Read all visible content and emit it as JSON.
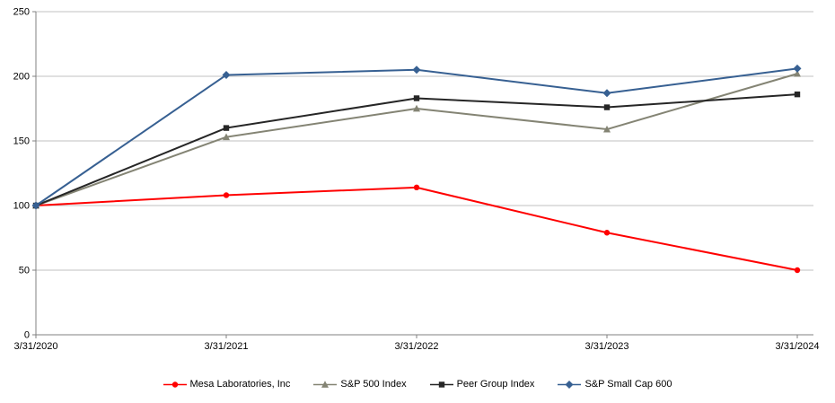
{
  "chart_data": {
    "type": "line",
    "x": [
      "3/31/2020",
      "3/31/2021",
      "3/31/2022",
      "3/31/2023",
      "3/31/2024"
    ],
    "series": [
      {
        "name": "Mesa Laboratories, Inc",
        "values": [
          100,
          108,
          114,
          79,
          50
        ],
        "color": "#ff0000",
        "marker": "circle"
      },
      {
        "name": "S&P 500 Index",
        "values": [
          100,
          153,
          175,
          159,
          202
        ],
        "color": "#848474",
        "marker": "triangle"
      },
      {
        "name": "Peer Group Index",
        "values": [
          100,
          160,
          183,
          176,
          186
        ],
        "color": "#262626",
        "marker": "square"
      },
      {
        "name": "S&P Small Cap 600",
        "values": [
          100,
          201,
          205,
          187,
          206
        ],
        "color": "#376092",
        "marker": "diamond"
      }
    ],
    "title": "",
    "xlabel": "",
    "ylabel": "",
    "ylim": [
      0,
      250
    ],
    "y_ticks": [
      0,
      50,
      100,
      150,
      200,
      250
    ],
    "grid": true,
    "legend_position": "bottom"
  },
  "colors": {
    "gridline": "#c0c0c0",
    "axis": "#808080",
    "text": "#000000",
    "background": "#ffffff"
  }
}
